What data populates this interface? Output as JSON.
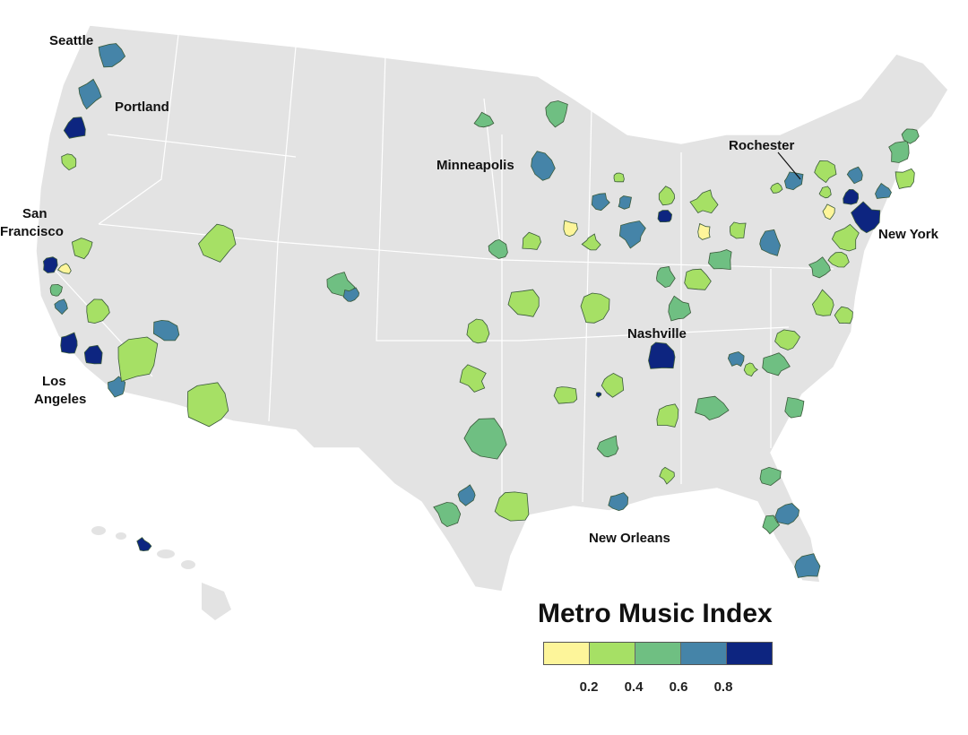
{
  "legend": {
    "title": "Metro Music Index",
    "colors": [
      "#fdf59a",
      "#a6e065",
      "#6fbf82",
      "#4584a8",
      "#0d2580"
    ],
    "ticks": [
      "0.2",
      "0.4",
      "0.6",
      "0.8"
    ]
  },
  "map": {
    "land_color": "#e3e3e3",
    "border_color": "#ffffff",
    "city_labels": [
      "Seattle",
      "Portland",
      "San",
      "Francisco",
      "Los",
      "Angeles",
      "Minneapolis",
      "Rochester",
      "New York",
      "Nashville",
      "New Orleans"
    ]
  },
  "metros": [
    {
      "name": "Seattle",
      "bin": 3
    },
    {
      "name": "Portland",
      "bin": 3
    },
    {
      "bin": 4
    },
    {
      "bin": 1
    },
    {
      "name": "San Francisco",
      "bin": 4
    },
    {
      "bin": 1
    },
    {
      "bin": 0
    },
    {
      "bin": 2
    },
    {
      "bin": 3
    },
    {
      "bin": 1
    },
    {
      "name": "Los Angeles",
      "bin": 4
    },
    {
      "bin": 4
    },
    {
      "bin": 3
    },
    {
      "bin": 1
    },
    {
      "bin": 3
    },
    {
      "bin": 1
    },
    {
      "bin": 1
    },
    {
      "bin": 2
    },
    {
      "bin": 3
    },
    {
      "bin": 2
    },
    {
      "bin": 2
    },
    {
      "name": "Minneapolis",
      "bin": 3
    },
    {
      "bin": 2
    },
    {
      "bin": 1
    },
    {
      "bin": 0
    },
    {
      "bin": 1
    },
    {
      "bin": 3
    },
    {
      "bin": 3
    },
    {
      "bin": 3
    },
    {
      "bin": 1
    },
    {
      "bin": 1
    },
    {
      "bin": 4
    },
    {
      "bin": 1
    },
    {
      "bin": 0
    },
    {
      "bin": 1
    },
    {
      "bin": 3
    },
    {
      "bin": 1
    },
    {
      "bin": 1
    },
    {
      "bin": 1
    },
    {
      "bin": 2
    },
    {
      "bin": 1
    },
    {
      "bin": 2
    },
    {
      "bin": 2
    },
    {
      "name": "Nashville",
      "bin": 4
    },
    {
      "bin": 3
    },
    {
      "bin": 1
    },
    {
      "bin": 2
    },
    {
      "bin": 1
    },
    {
      "bin": 1
    },
    {
      "bin": 1
    },
    {
      "bin": 1
    },
    {
      "bin": 4
    },
    {
      "bin": 1
    },
    {
      "bin": 2
    },
    {
      "bin": 2
    },
    {
      "bin": 2
    },
    {
      "bin": 2
    },
    {
      "bin": 1
    },
    {
      "bin": 2
    },
    {
      "bin": 3
    },
    {
      "bin": 2
    },
    {
      "bin": 3
    },
    {
      "bin": 2
    },
    {
      "bin": 3
    },
    {
      "bin": 1
    },
    {
      "name": "New Orleans",
      "bin": 3
    },
    {
      "bin": 4
    },
    {
      "name": "Rochester",
      "bin": 3
    },
    {
      "bin": 1
    },
    {
      "bin": 1
    },
    {
      "bin": 3
    },
    {
      "bin": 4
    },
    {
      "bin": 0
    },
    {
      "name": "New York",
      "bin": 4
    },
    {
      "bin": 1
    },
    {
      "bin": 1
    },
    {
      "bin": 2
    },
    {
      "bin": 1
    },
    {
      "bin": 1
    },
    {
      "bin": 2
    },
    {
      "bin": 1
    },
    {
      "bin": 3
    },
    {
      "bin": 2
    },
    {
      "bin": 1
    }
  ]
}
